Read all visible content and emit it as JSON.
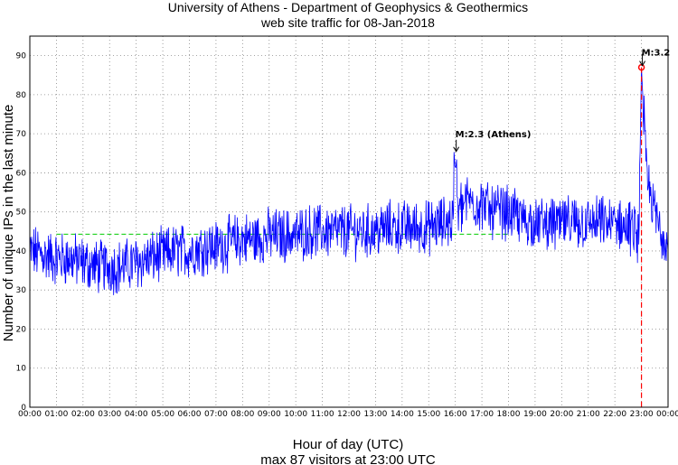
{
  "chart_data": {
    "type": "line",
    "title": "University of Athens - Department of Geophysics & Geothermics",
    "subtitle": "web site traffic for 08-Jan-2018",
    "xlabel": "Hour of day (UTC)",
    "ylabel": "Number of unique IPs in the last minute",
    "footer": "max 87 visitors at 23:00 UTC",
    "xlim": [
      0,
      24
    ],
    "ylim": [
      0,
      95
    ],
    "x_ticks": [
      "00:00",
      "01:00",
      "02:00",
      "03:00",
      "04:00",
      "05:00",
      "06:00",
      "07:00",
      "08:00",
      "09:00",
      "10:00",
      "11:00",
      "12:00",
      "13:00",
      "14:00",
      "15:00",
      "16:00",
      "17:00",
      "18:00",
      "19:00",
      "20:00",
      "21:00",
      "22:00",
      "23:00",
      "00:00"
    ],
    "y_ticks": [
      0,
      10,
      20,
      30,
      40,
      50,
      60,
      70,
      80,
      90
    ],
    "grid": true,
    "series_color": "#0000ff",
    "trend_color": "#00cc00",
    "series_trend": [
      [
        0,
        40
      ],
      [
        0.5,
        39
      ],
      [
        1,
        38
      ],
      [
        1.5,
        38
      ],
      [
        2,
        37
      ],
      [
        2.5,
        36
      ],
      [
        3,
        36
      ],
      [
        3.5,
        36
      ],
      [
        4,
        37
      ],
      [
        4.5,
        38
      ],
      [
        5,
        39
      ],
      [
        5.5,
        40
      ],
      [
        6,
        40
      ],
      [
        6.5,
        41
      ],
      [
        7,
        41
      ],
      [
        7.5,
        42
      ],
      [
        8,
        43
      ],
      [
        8.5,
        43
      ],
      [
        9,
        44
      ],
      [
        9.5,
        44
      ],
      [
        10,
        44
      ],
      [
        10.5,
        45
      ],
      [
        11,
        45
      ],
      [
        11.5,
        45
      ],
      [
        12,
        45
      ],
      [
        12.5,
        45
      ],
      [
        13,
        45
      ],
      [
        13.5,
        46
      ],
      [
        14,
        46
      ],
      [
        14.5,
        46
      ],
      [
        15,
        46
      ],
      [
        15.5,
        47
      ],
      [
        15.9,
        48
      ],
      [
        16,
        50
      ],
      [
        16.5,
        53
      ],
      [
        17,
        52
      ],
      [
        17.5,
        50
      ],
      [
        18,
        50
      ],
      [
        18.5,
        48
      ],
      [
        19,
        47
      ],
      [
        19.5,
        47
      ],
      [
        20,
        47
      ],
      [
        20.5,
        47
      ],
      [
        21,
        47
      ],
      [
        21.5,
        47
      ],
      [
        22,
        47
      ],
      [
        22.5,
        46
      ],
      [
        22.9,
        44
      ],
      [
        23,
        87
      ],
      [
        23.2,
        58
      ],
      [
        23.4,
        52
      ],
      [
        23.7,
        46
      ],
      [
        24,
        42
      ]
    ],
    "mean_segments": [
      {
        "x_start": 1.0,
        "x_end": 8.0,
        "y": 44.3
      },
      {
        "x_start": 8.0,
        "x_end": 18.0,
        "y": 44.3
      }
    ],
    "annotations": [
      {
        "text": "M:2.3 (Athens)",
        "x": 16.0,
        "y": 65
      },
      {
        "text": "M:3.2",
        "x": 23.0,
        "y": 87
      }
    ],
    "max_marker": {
      "x": 23.0,
      "y": 87,
      "color": "#ff0000"
    },
    "event_line": {
      "x": 23.0,
      "color": "#ff0000"
    }
  }
}
